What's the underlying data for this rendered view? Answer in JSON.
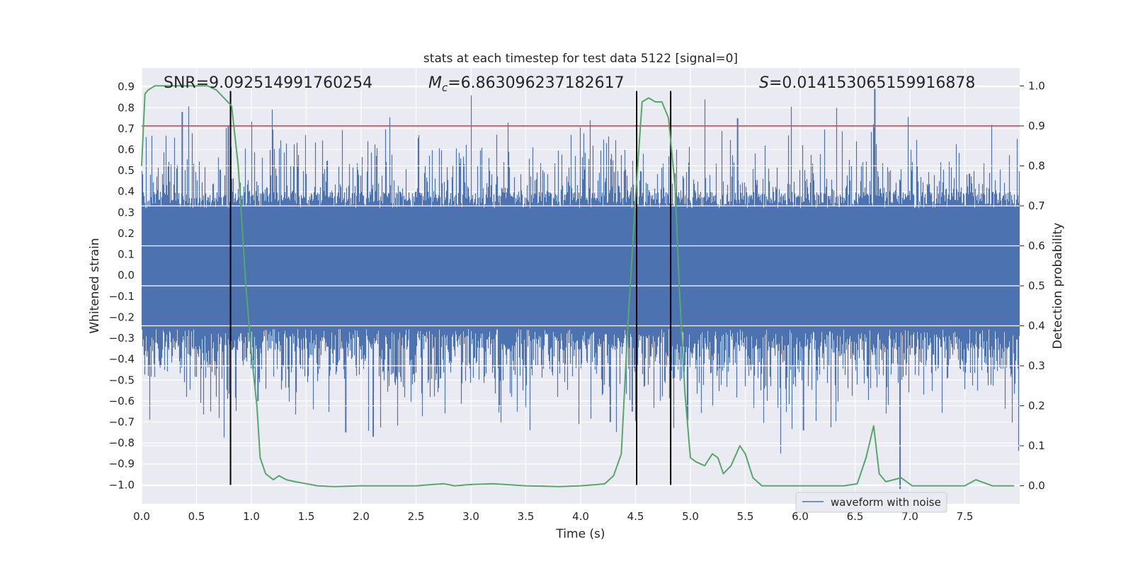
{
  "chart_data": {
    "type": "line",
    "title": "stats at each timestep for test data 5122 [signal=0]",
    "xlabel": "Time (s)",
    "ylabel_left": "Whitened strain",
    "ylabel_right": "Detection probability",
    "xlim": [
      0.0,
      8.0
    ],
    "ylim_left": [
      -1.09,
      0.99
    ],
    "ylim_right": [
      -0.045,
      1.045
    ],
    "x_ticks": [
      0.0,
      0.5,
      1.0,
      1.5,
      2.0,
      2.5,
      3.0,
      3.5,
      4.0,
      4.5,
      5.0,
      5.5,
      6.0,
      6.5,
      7.0,
      7.5
    ],
    "x_tick_labels": [
      "0.0",
      "0.5",
      "1.0",
      "1.5",
      "2.0",
      "2.5",
      "3.0",
      "3.5",
      "4.0",
      "4.5",
      "5.0",
      "5.5",
      "6.0",
      "6.5",
      "7.0",
      "7.5"
    ],
    "y_left_ticks": [
      0.9,
      0.8,
      0.7,
      0.6,
      0.5,
      0.4,
      0.3,
      0.2,
      0.1,
      0.0,
      -0.1,
      -0.2,
      -0.3,
      -0.4,
      -0.5,
      -0.6,
      -0.7,
      -0.8,
      -0.9,
      -1.0
    ],
    "y_left_tick_labels": [
      "0.9",
      "0.8",
      "0.7",
      "0.6",
      "0.5",
      "0.4",
      "0.3",
      "0.2",
      "0.1",
      "0.0",
      "−0.1",
      "−0.2",
      "−0.3",
      "−0.4",
      "−0.5",
      "−0.6",
      "−0.7",
      "−0.8",
      "−0.9",
      "−1.0"
    ],
    "y_right_ticks": [
      1.0,
      0.9,
      0.8,
      0.7,
      0.6,
      0.5,
      0.4,
      0.3,
      0.2,
      0.1,
      0.0
    ],
    "y_right_tick_labels": [
      "1.0",
      "0.9",
      "0.8",
      "0.7",
      "0.6",
      "0.5",
      "0.4",
      "0.3",
      "0.2",
      "0.1",
      "0.0"
    ],
    "annotations": [
      {
        "text": "SNR=9.092514991760254",
        "x": 0.2,
        "y": 0.9
      },
      {
        "text": "M_c=6.863096237182617",
        "x": 2.6,
        "y": 0.9,
        "math_symbol": "M",
        "math_subscript": "c",
        "rest": "=6.863096237182617"
      },
      {
        "text": "S=0.014153065159916878",
        "x": 5.6,
        "y": 0.9,
        "math_symbol": "S",
        "rest": "=0.014153065159916878"
      }
    ],
    "series": [
      {
        "name": "waveform with noise",
        "color": "#4c72b0",
        "axis": "left",
        "kind": "dense-noise",
        "core_band": [
          -0.25,
          0.32
        ],
        "typical_peak_range": [
          -0.45,
          0.45
        ],
        "notable_spikes": [
          {
            "x": 0.37,
            "y": 0.78
          },
          {
            "x": 0.79,
            "y": 0.71
          },
          {
            "x": 1.06,
            "y": -0.6
          },
          {
            "x": 1.86,
            "y": -0.75
          },
          {
            "x": 2.11,
            "y": -0.77
          },
          {
            "x": 4.27,
            "y": -0.7
          },
          {
            "x": 4.47,
            "y": -0.65
          },
          {
            "x": 5.43,
            "y": 0.75
          },
          {
            "x": 6.03,
            "y": -0.74
          },
          {
            "x": 6.68,
            "y": 0.89
          },
          {
            "x": 6.91,
            "y": -1.02
          }
        ]
      },
      {
        "color": "#55a868",
        "axis": "right",
        "kind": "line",
        "x": [
          0.0,
          0.03,
          0.06,
          0.12,
          0.2,
          0.3,
          0.45,
          0.6,
          0.68,
          0.75,
          0.82,
          0.88,
          0.95,
          1.0,
          1.05,
          1.08,
          1.13,
          1.2,
          1.25,
          1.32,
          1.4,
          1.5,
          1.6,
          1.75,
          1.9,
          2.0,
          2.2,
          2.5,
          2.65,
          2.75,
          2.85,
          3.0,
          3.2,
          3.5,
          3.8,
          4.0,
          4.15,
          4.22,
          4.3,
          4.37,
          4.43,
          4.5,
          4.56,
          4.62,
          4.68,
          4.74,
          4.8,
          4.86,
          4.9,
          4.95,
          5.0,
          5.05,
          5.13,
          5.2,
          5.25,
          5.3,
          5.37,
          5.45,
          5.5,
          5.57,
          5.65,
          5.8,
          6.0,
          6.2,
          6.4,
          6.52,
          6.6,
          6.67,
          6.72,
          6.78,
          6.85,
          6.92,
          6.97,
          7.02,
          7.1,
          7.3,
          7.45,
          7.5,
          7.6,
          7.75,
          7.95
        ],
        "values": [
          0.8,
          0.98,
          0.99,
          1.0,
          1.0,
          1.0,
          1.0,
          1.0,
          0.99,
          0.97,
          0.95,
          0.8,
          0.5,
          0.33,
          0.2,
          0.07,
          0.03,
          0.015,
          0.025,
          0.015,
          0.01,
          0.005,
          0.0,
          -0.002,
          -0.001,
          0.0,
          0.0,
          0.0,
          0.003,
          0.005,
          0.0,
          0.003,
          0.005,
          0.0,
          -0.002,
          0.0,
          0.003,
          0.005,
          0.025,
          0.08,
          0.4,
          0.72,
          0.96,
          0.97,
          0.96,
          0.96,
          0.92,
          0.75,
          0.49,
          0.23,
          0.07,
          0.06,
          0.05,
          0.08,
          0.07,
          0.03,
          0.05,
          0.1,
          0.08,
          0.02,
          0.0,
          0.0,
          0.0,
          0.0,
          0.0,
          0.005,
          0.07,
          0.15,
          0.03,
          0.01,
          0.015,
          0.02,
          0.01,
          0.0,
          0.0,
          0.0,
          0.0,
          0.0,
          0.015,
          0.0,
          0.0
        ]
      }
    ],
    "reference_lines": [
      {
        "orientation": "horizontal",
        "axis": "right",
        "y": 0.9,
        "color": "#c44e52"
      },
      {
        "orientation": "vertical",
        "x": 0.81,
        "y_from": -1.0,
        "y_to": 0.88,
        "color": "#000000"
      },
      {
        "orientation": "vertical",
        "x": 4.51,
        "y_from": -1.0,
        "y_to": 0.88,
        "color": "#000000"
      },
      {
        "orientation": "vertical",
        "x": 4.82,
        "y_from": -1.0,
        "y_to": 0.88,
        "color": "#000000"
      }
    ],
    "legend": {
      "position": "bottom-right",
      "entries": [
        "waveform with noise"
      ]
    },
    "grid": true,
    "background": "#eaeaf2"
  }
}
